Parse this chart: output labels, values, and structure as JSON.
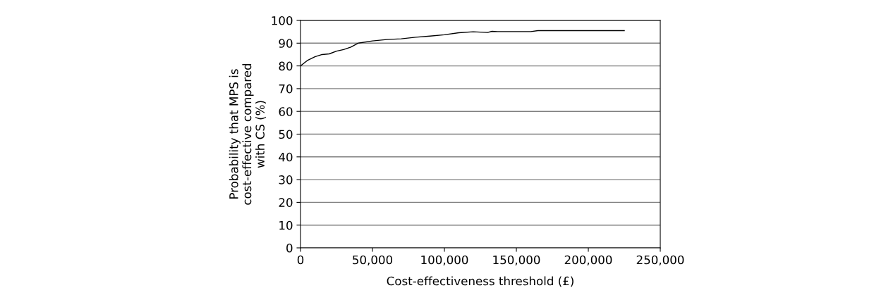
{
  "chart_data": {
    "type": "line",
    "xlabel": "Cost-effectiveness threshold (£)",
    "ylabel": "Probability that MPS is\ncost-effective compared\nwith CS (%)",
    "x": [
      0,
      5000,
      10000,
      15000,
      20000,
      25000,
      30000,
      35000,
      40000,
      50000,
      60000,
      70000,
      80000,
      90000,
      100000,
      110000,
      120000,
      130000,
      133000,
      137000,
      160000,
      165000,
      225000
    ],
    "series": [
      {
        "color": "#000000",
        "values": [
          80,
          82.5,
          84,
          85,
          85.3,
          86.5,
          87.2,
          88.3,
          90,
          91,
          91.6,
          91.9,
          92.6,
          93.1,
          93.7,
          94.6,
          95,
          94.7,
          95.2,
          95.1,
          95.1,
          95.5,
          95.5
        ]
      }
    ],
    "xlim": [
      0,
      250000
    ],
    "xticks": [
      0,
      {
        "value": 50000,
        "label": "50,000"
      },
      {
        "value": 100000,
        "label": "100,000"
      },
      {
        "value": 150000,
        "label": "150,000"
      },
      {
        "value": 200000,
        "label": "200,000"
      },
      {
        "value": 250000,
        "label": "250,000"
      }
    ],
    "ylim": [
      0,
      100
    ],
    "yticks": [
      0,
      10,
      20,
      30,
      40,
      50,
      60,
      70,
      80,
      90,
      100
    ],
    "grid": "y",
    "legend": false,
    "marker": "none",
    "line_style": "solid"
  }
}
